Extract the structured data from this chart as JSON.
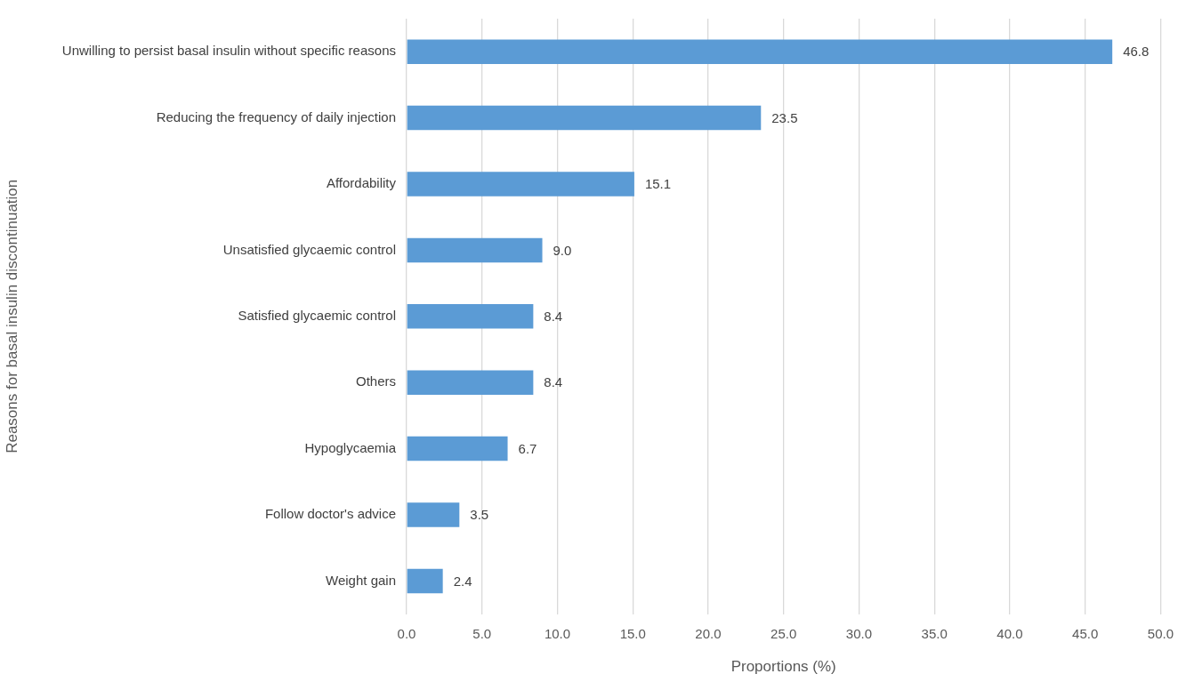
{
  "chart_data": {
    "type": "bar",
    "orientation": "horizontal",
    "xlabel": "Proportions (%)",
    "ylabel": "Reasons for basal insulin discontinuation",
    "categories": [
      "Unwilling to persist basal insulin without specific reasons",
      "Reducing the frequency of daily injection",
      "Affordability",
      "Unsatisfied glycaemic control",
      "Satisfied glycaemic control",
      "Others",
      "Hypoglycaemia",
      "Follow doctor's advice",
      "Weight gain"
    ],
    "values": [
      46.8,
      23.5,
      15.1,
      9.0,
      8.4,
      8.4,
      6.7,
      3.5,
      2.4
    ],
    "value_labels": [
      "46.8",
      "23.5",
      "15.1",
      "9.0",
      "8.4",
      "8.4",
      "6.7",
      "3.5",
      "2.4"
    ],
    "color": "#5b9bd5",
    "xlim": [
      0,
      50
    ],
    "xticks": [
      {
        "value": 0,
        "label": "0.0"
      },
      {
        "value": 5,
        "label": "5.0"
      },
      {
        "value": 10,
        "label": "10.0"
      },
      {
        "value": 15,
        "label": "15.0"
      },
      {
        "value": 20,
        "label": "20.0"
      },
      {
        "value": 25,
        "label": "25.0"
      },
      {
        "value": 30,
        "label": "30.0"
      },
      {
        "value": 35,
        "label": "35.0"
      },
      {
        "value": 40,
        "label": "40.0"
      },
      {
        "value": 45,
        "label": "45.0"
      },
      {
        "value": 50,
        "label": "50.0"
      }
    ],
    "grid": "x",
    "legend": false
  }
}
